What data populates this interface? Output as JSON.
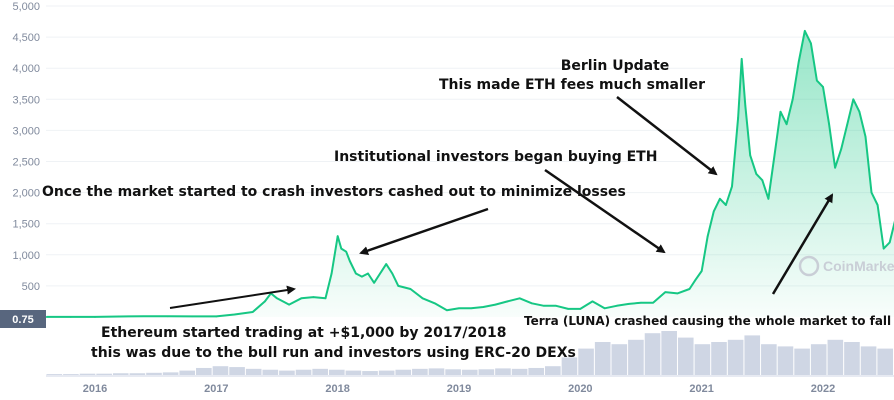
{
  "chart_data": {
    "type": "area",
    "title": "",
    "xlabel": "",
    "ylabel": "",
    "ylim": [
      0,
      5000
    ],
    "y_ticks": [
      "500",
      "1,000",
      "1,500",
      "2,000",
      "2,500",
      "3,000",
      "3,500",
      "4,000",
      "4,500",
      "5,000"
    ],
    "y_tick_values": [
      500,
      1000,
      1500,
      2000,
      2500,
      3000,
      3500,
      4000,
      4500,
      5000
    ],
    "x_ticks": [
      "2016",
      "2017",
      "2018",
      "2019",
      "2020",
      "2021",
      "2022"
    ],
    "x_tick_values": [
      2016,
      2017,
      2018,
      2019,
      2020,
      2021,
      2022
    ],
    "current_price_badge": "0.75",
    "watermark": "CoinMarketCap",
    "grid": true,
    "colors": {
      "line": "#16c784",
      "fill_top": "#16c784",
      "volume": "#cfd6e4",
      "badge": "#58667e",
      "grid": "#eff2f5"
    },
    "series": [
      {
        "x": [
          2015.6,
          2015.8,
          2016.0,
          2016.2,
          2016.4,
          2016.6,
          2016.8,
          2017.0,
          2017.15,
          2017.3,
          2017.4,
          2017.45,
          2017.5,
          2017.6,
          2017.7,
          2017.8,
          2017.9,
          2017.95,
          2018.0,
          2018.03,
          2018.07,
          2018.1,
          2018.15,
          2018.2,
          2018.25,
          2018.3,
          2018.35,
          2018.4,
          2018.45,
          2018.5,
          2018.6,
          2018.7,
          2018.8,
          2018.9,
          2019.0,
          2019.1,
          2019.2,
          2019.3,
          2019.4,
          2019.5,
          2019.6,
          2019.7,
          2019.8,
          2019.9,
          2020.0,
          2020.1,
          2020.2,
          2020.3,
          2020.4,
          2020.5,
          2020.6,
          2020.7,
          2020.8,
          2020.9,
          2020.95,
          2021.0,
          2021.05,
          2021.1,
          2021.15,
          2021.2,
          2021.25,
          2021.3,
          2021.33,
          2021.36,
          2021.4,
          2021.45,
          2021.5,
          2021.55,
          2021.6,
          2021.65,
          2021.7,
          2021.75,
          2021.8,
          2021.85,
          2021.9,
          2021.95,
          2022.0,
          2022.05,
          2022.1,
          2022.15,
          2022.2,
          2022.25,
          2022.3,
          2022.35,
          2022.4,
          2022.45,
          2022.5,
          2022.55,
          2022.6
        ],
        "values": [
          1,
          1,
          1,
          8,
          12,
          11,
          10,
          9,
          40,
          80,
          250,
          380,
          300,
          200,
          300,
          320,
          300,
          700,
          1300,
          1100,
          1050,
          900,
          700,
          650,
          700,
          550,
          700,
          850,
          700,
          500,
          450,
          300,
          220,
          110,
          140,
          140,
          160,
          200,
          250,
          300,
          220,
          180,
          180,
          130,
          130,
          250,
          140,
          180,
          210,
          230,
          230,
          400,
          380,
          450,
          600,
          740,
          1300,
          1700,
          1900,
          1800,
          2100,
          3200,
          4150,
          3400,
          2600,
          2300,
          2200,
          1900,
          2600,
          3300,
          3100,
          3500,
          4100,
          4600,
          4400,
          3800,
          3700,
          3100,
          2400,
          2700,
          3100,
          3500,
          3300,
          2900,
          2000,
          1800,
          1100,
          1200,
          1600
        ]
      }
    ],
    "volume_bars": [
      0.02,
      0.02,
      0.03,
      0.03,
      0.04,
      0.04,
      0.05,
      0.06,
      0.1,
      0.16,
      0.2,
      0.18,
      0.14,
      0.12,
      0.1,
      0.12,
      0.14,
      0.12,
      0.1,
      0.09,
      0.1,
      0.12,
      0.14,
      0.15,
      0.13,
      0.12,
      0.13,
      0.15,
      0.14,
      0.16,
      0.2,
      0.4,
      0.6,
      0.75,
      0.7,
      0.8,
      0.95,
      1.0,
      0.85,
      0.7,
      0.75,
      0.8,
      0.9,
      0.7,
      0.65,
      0.6,
      0.7,
      0.8,
      0.75,
      0.65,
      0.6
    ]
  },
  "annotations": {
    "berlin_title": "Berlin Update",
    "berlin_subtitle": "This made ETH fees much smaller",
    "institutional": "Institutional investors began buying ETH",
    "crash": "Once the market started to crash investors cashed out to minimize losses",
    "start_line1": "Ethereum started trading at +$1,000 by 2017/2018",
    "start_line2": "this was due to the bull run and investors using ERC-20 DEXs",
    "luna": "Terra (LUNA) crashed causing the whole market to fall"
  }
}
